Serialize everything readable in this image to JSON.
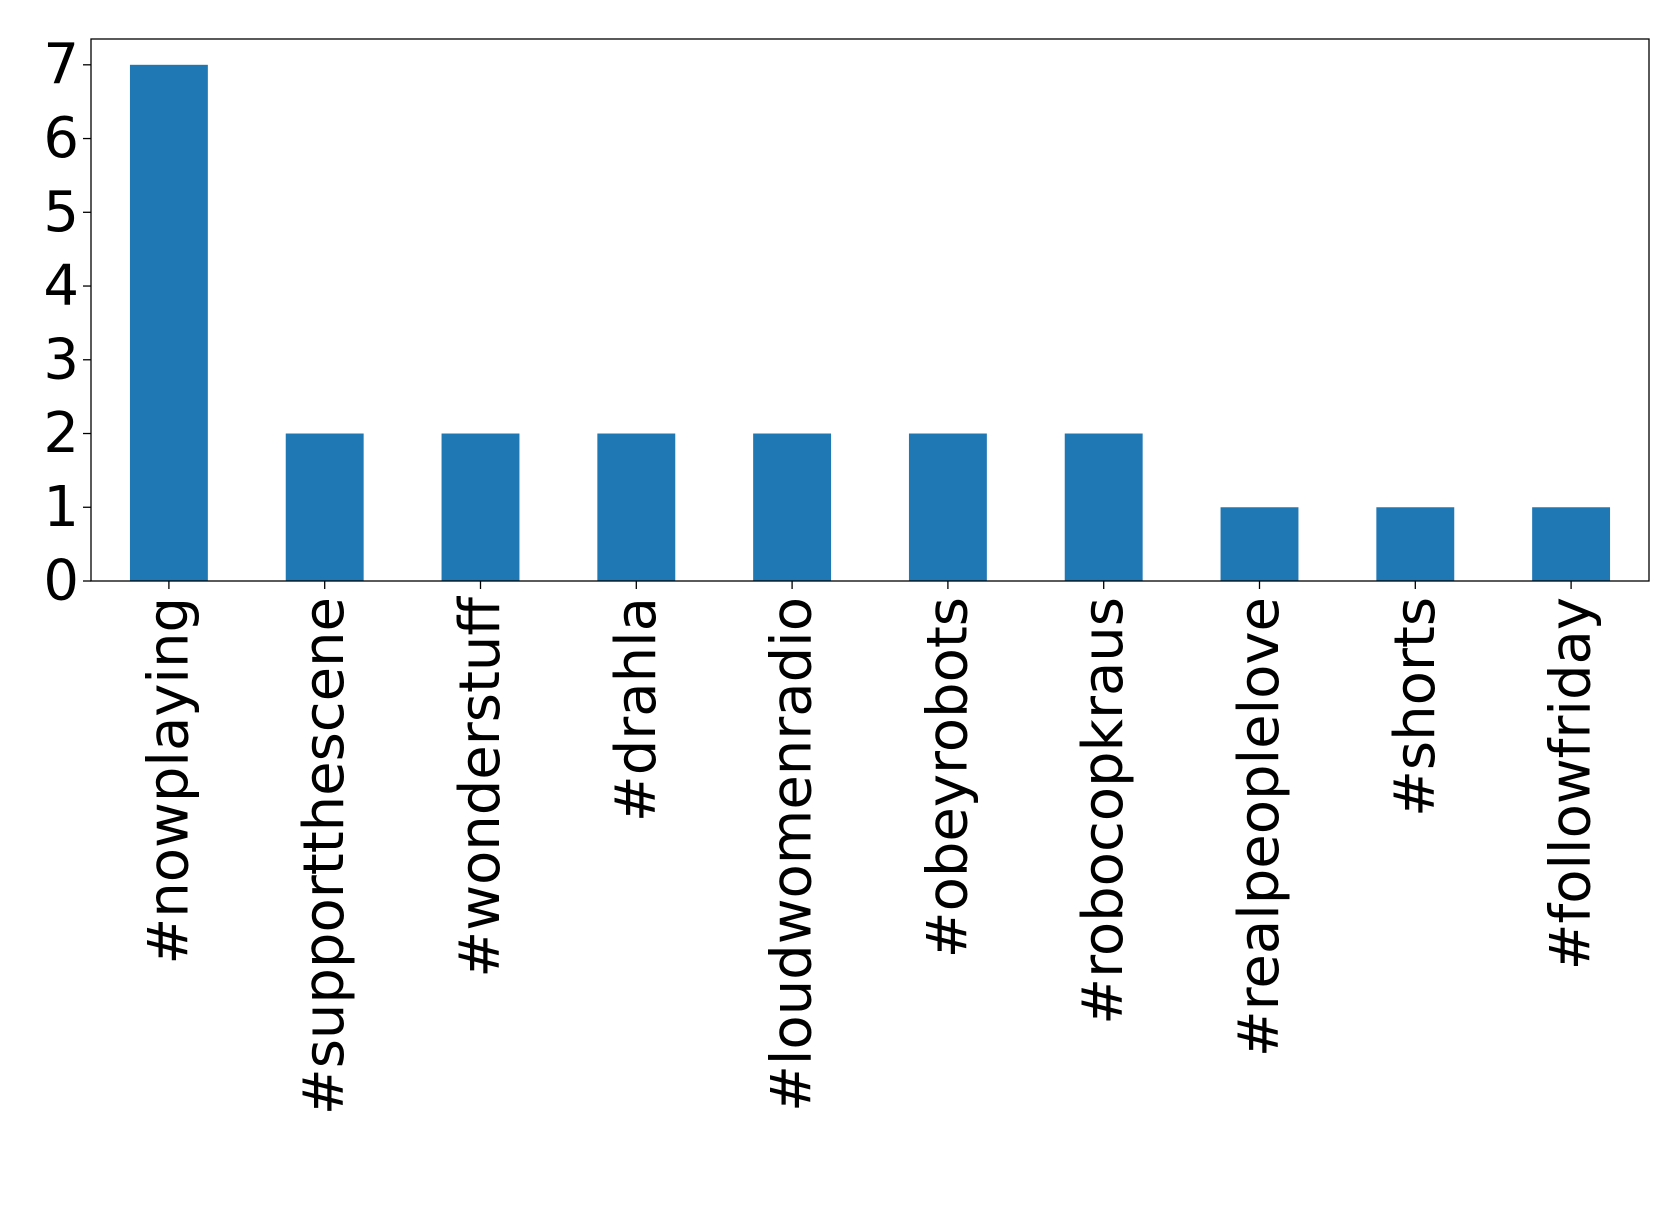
{
  "chart_data": {
    "type": "bar",
    "categories": [
      "#nowplaying",
      "#supportthescene",
      "#wonderstuff",
      "#drahla",
      "#loudwomenradio",
      "#obeyrobots",
      "#robocopkraus",
      "#realpeoplelove",
      "#shorts",
      "#followfriday"
    ],
    "values": [
      7,
      2,
      2,
      2,
      2,
      2,
      2,
      1,
      1,
      1
    ],
    "yticks": [
      "0",
      "1",
      "2",
      "3",
      "4",
      "5",
      "6",
      "7"
    ],
    "ylim": [
      0,
      7.35
    ],
    "grid": false,
    "legend": "none",
    "bar_color": "#1f77b4"
  }
}
